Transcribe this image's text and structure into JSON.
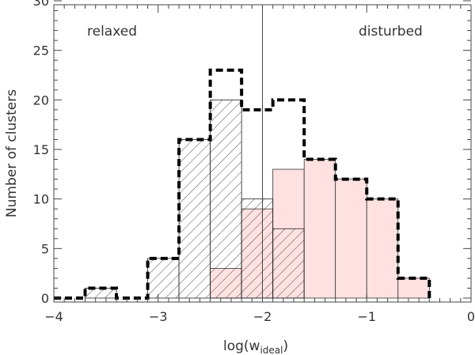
{
  "chart_data": {
    "type": "histogram",
    "xlabel": "log(w",
    "xlabel_subscript": "ideal",
    "xlabel_close": ")",
    "ylabel": "Number of clusters",
    "xlim": [
      -4,
      0
    ],
    "ylim": [
      0,
      30
    ],
    "x_major_ticks": [
      -4,
      -3,
      -2,
      -1,
      0
    ],
    "x_tick_labels": [
      "−4",
      "−3",
      "−2",
      "−1",
      "0"
    ],
    "x_minor_step": 0.1,
    "y_major_ticks": [
      0,
      5,
      10,
      15,
      20,
      25,
      30
    ],
    "y_tick_labels": [
      "0",
      "5",
      "10",
      "15",
      "20",
      "25",
      "30"
    ],
    "y_minor_step": 1,
    "bin_edges": [
      -4.0,
      -3.7,
      -3.4,
      -3.1,
      -2.8,
      -2.5,
      -2.2,
      -1.9,
      -1.6,
      -1.3,
      -1.0,
      -0.7,
      -0.4
    ],
    "series": [
      {
        "style": "dashed-step",
        "color": "#000000",
        "values": [
          0,
          1,
          0,
          4,
          16,
          23,
          19,
          20,
          14,
          12,
          10,
          2
        ]
      },
      {
        "style": "hatched",
        "color": "#000000",
        "values": [
          0,
          1,
          0,
          4,
          16,
          20,
          10,
          7,
          0,
          0,
          0,
          0
        ]
      },
      {
        "style": "filled",
        "color": "#ffe1e1",
        "edge_color": "#333333",
        "values": [
          0,
          0,
          0,
          0,
          0,
          3,
          9,
          13,
          14,
          12,
          10,
          2
        ]
      }
    ],
    "vertical_line_x": -2,
    "annotations": [
      {
        "text": "relaxed",
        "color": "#000000"
      },
      {
        "text": "disturbed",
        "color": "#ff5555"
      }
    ]
  }
}
